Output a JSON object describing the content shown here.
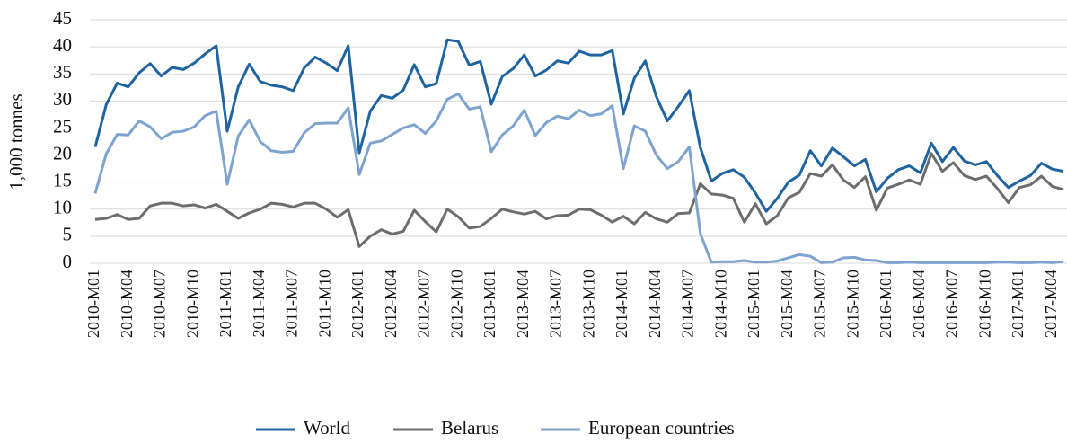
{
  "chart_data": {
    "type": "line",
    "y_label": "1,000 tonnes",
    "categories": [
      "2010-M01",
      null,
      null,
      "2010-M04",
      null,
      null,
      "2010-M07",
      null,
      null,
      "2010-M10",
      null,
      null,
      "2011-M01",
      null,
      null,
      "2011-M04",
      null,
      null,
      "2011-M07",
      null,
      null,
      "2011-M10",
      null,
      null,
      "2012-M01",
      null,
      null,
      "2012-M04",
      null,
      null,
      "2012-M07",
      null,
      null,
      "2012-M10",
      null,
      null,
      "2013-M01",
      null,
      null,
      "2013-M04",
      null,
      null,
      "2013-M07",
      null,
      null,
      "2013-M10",
      null,
      null,
      "2014-M01",
      null,
      null,
      "2014-M04",
      null,
      null,
      "2014-M07",
      null,
      null,
      "2014-M10",
      null,
      null,
      "2015-M01",
      null,
      null,
      "2015-M04",
      null,
      null,
      "2015-M07",
      null,
      null,
      "2015-M10",
      null,
      null,
      "2016-M01",
      null,
      null,
      "2016-M04",
      null,
      null,
      "2016-M07",
      null,
      null,
      "2016-M10",
      null,
      null,
      "2017-M01",
      null,
      null,
      "2017-M04",
      null
    ],
    "series": [
      {
        "name": "World",
        "color": "#1f64a0",
        "values": [
          21.5,
          29.3,
          33.3,
          32.6,
          35.2,
          36.9,
          34.6,
          36.2,
          35.8,
          37.0,
          38.7,
          40.2,
          24.4,
          32.6,
          36.8,
          33.6,
          32.9,
          32.6,
          31.9,
          36.1,
          38.1,
          37.0,
          35.6,
          40.2,
          20.4,
          28.1,
          31.0,
          30.5,
          32.0,
          36.7,
          32.6,
          33.2,
          41.3,
          41.0,
          36.6,
          37.3,
          29.4,
          34.5,
          36.0,
          38.5,
          34.6,
          35.7,
          37.4,
          37.0,
          39.2,
          38.5,
          38.5,
          39.3,
          27.6,
          34.2,
          37.4,
          30.8,
          26.3,
          29.0,
          31.9,
          21.4,
          15.2,
          16.6,
          17.3,
          15.9,
          13.0,
          9.6,
          12.0,
          15.0,
          16.3,
          20.8,
          18.0,
          21.3,
          19.7,
          18.0,
          19.2,
          13.2,
          15.7,
          17.3,
          18.0,
          16.7,
          22.2,
          18.8,
          21.4,
          18.9,
          18.2,
          18.8,
          16.2,
          14.0,
          15.2,
          16.2,
          18.5,
          17.4,
          17.0
        ]
      },
      {
        "name": "Belarus",
        "color": "#6d6d6d",
        "values": [
          8.1,
          8.3,
          9.0,
          8.1,
          8.3,
          10.6,
          11.1,
          11.1,
          10.6,
          10.8,
          10.2,
          10.9,
          9.6,
          8.3,
          9.3,
          10.0,
          11.1,
          10.9,
          10.4,
          11.1,
          11.1,
          10.0,
          8.5,
          9.9,
          3.1,
          5.0,
          6.2,
          5.4,
          5.9,
          9.8,
          7.7,
          5.8,
          10.0,
          8.6,
          6.5,
          6.8,
          8.3,
          10.0,
          9.5,
          9.1,
          9.6,
          8.2,
          8.8,
          8.9,
          10.0,
          9.9,
          8.9,
          7.6,
          8.7,
          7.3,
          9.4,
          8.2,
          7.6,
          9.2,
          9.3,
          14.7,
          12.8,
          12.6,
          12.0,
          7.6,
          11.0,
          7.3,
          8.8,
          12.1,
          13.1,
          16.6,
          16.1,
          18.2,
          15.4,
          14.0,
          16.0,
          9.8,
          13.9,
          14.6,
          15.4,
          14.6,
          20.3,
          17.0,
          18.6,
          16.2,
          15.5,
          16.1,
          13.8,
          11.2,
          14.0,
          14.5,
          16.1,
          14.2,
          13.6
        ]
      },
      {
        "name": "European countries",
        "color": "#7fa3cf",
        "values": [
          12.9,
          20.2,
          23.8,
          23.7,
          26.3,
          25.2,
          23.0,
          24.2,
          24.4,
          25.2,
          27.3,
          28.1,
          14.6,
          23.5,
          26.5,
          22.5,
          20.8,
          20.5,
          20.7,
          24.1,
          25.8,
          25.9,
          25.9,
          28.7,
          16.4,
          22.2,
          22.6,
          23.8,
          25.0,
          25.6,
          24.0,
          26.3,
          30.3,
          31.3,
          28.5,
          28.9,
          20.6,
          23.7,
          25.4,
          28.3,
          23.6,
          26.0,
          27.2,
          26.7,
          28.3,
          27.3,
          27.6,
          29.1,
          17.5,
          25.4,
          24.4,
          20.0,
          17.5,
          18.8,
          21.5,
          5.5,
          0.2,
          0.3,
          0.3,
          0.5,
          0.2,
          0.2,
          0.4,
          1.0,
          1.6,
          1.3,
          0.1,
          0.2,
          1.0,
          1.1,
          0.6,
          0.5,
          0.1,
          0.1,
          0.2,
          0.1,
          0.1,
          0.1,
          0.1,
          0.1,
          0.1,
          0.1,
          0.2,
          0.2,
          0.1,
          0.1,
          0.2,
          0.1,
          0.3
        ]
      }
    ],
    "ylim": [
      0,
      45
    ],
    "yticks": [
      0,
      5,
      10,
      15,
      20,
      25,
      30,
      35,
      40,
      45
    ],
    "grid": true,
    "legend": "bottom"
  }
}
